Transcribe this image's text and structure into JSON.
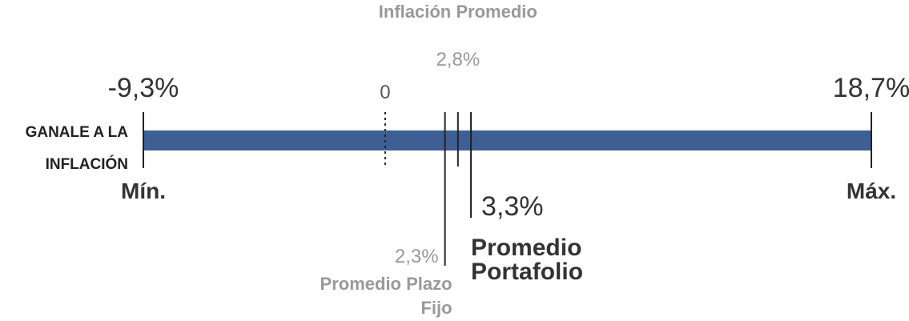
{
  "chart_data": {
    "type": "range",
    "label": "GANALE A LA INFLACIÓN",
    "color": "#3d5f94",
    "min": {
      "value": -9.3,
      "label": "-9,3%",
      "caption": "Mín."
    },
    "max": {
      "value": 18.7,
      "label": "18,7%",
      "caption": "Máx."
    },
    "zero": 0,
    "markers": [
      {
        "name": "Inflación Promedio",
        "value": 2.8,
        "label": "2,8%"
      },
      {
        "name": "Promedio Plazo Fijo",
        "value": 2.3,
        "label": "2,3%"
      },
      {
        "name": "Promedio Portafolio",
        "value": 3.3,
        "label": "3,3%"
      }
    ]
  }
}
